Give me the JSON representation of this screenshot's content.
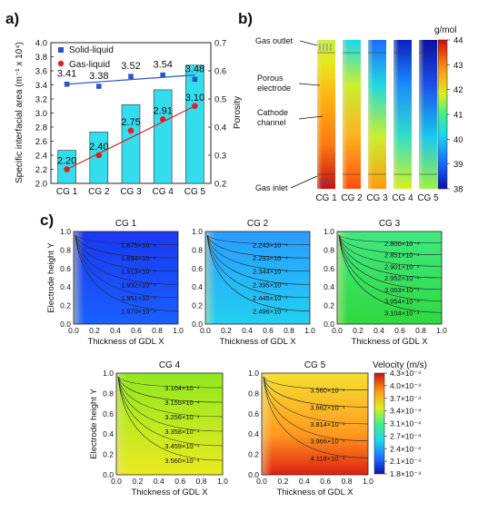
{
  "panel_labels": [
    "a)",
    "b)",
    "c)"
  ],
  "chart_data": [
    {
      "type": "bar",
      "panel": "a)",
      "categories": [
        "CG 1",
        "CG 2",
        "CG 3",
        "CG 4",
        "CG 5"
      ],
      "values": [
        2.2,
        2.4,
        2.75,
        2.91,
        3.1
      ],
      "bar_labels": [
        "2.20",
        "2.40",
        "2.75",
        "2.91",
        "3.10"
      ],
      "bar_heights": [
        2.47,
        2.73,
        3.12,
        3.33,
        3.68
      ],
      "bar_color": "#33ddee",
      "ylabel": "Specific interfacial area (m⁻¹ x 10⁴)",
      "ylim": [
        2.0,
        4.0
      ],
      "yticks": [
        "2.0",
        "2.2",
        "2.4",
        "2.6",
        "2.8",
        "3.0",
        "3.2",
        "3.4",
        "3.6",
        "3.8",
        "4.0"
      ],
      "y2label": "Porosity",
      "y2lim": [
        0.2,
        0.7
      ],
      "y2ticks": [
        "0.2",
        "0.3",
        "0.4",
        "0.5",
        "0.6",
        "0.7"
      ],
      "series": [
        {
          "name": "Solid-liquid",
          "color": "#2a55cc",
          "marker": "square",
          "values": [
            3.41,
            3.38,
            3.52,
            3.54,
            3.48
          ],
          "labels": [
            "3.41",
            "3.38",
            "3.52",
            "3.54",
            "3.48"
          ]
        },
        {
          "name": "Gas-liquid",
          "color": "#dd2222",
          "marker": "circle",
          "values": [
            2.2,
            2.4,
            2.75,
            2.91,
            3.1
          ],
          "labels": [
            "2.20",
            "2.40",
            "2.75",
            "2.91",
            "3.10"
          ]
        }
      ],
      "legend": "top-left"
    },
    {
      "type": "heatmap",
      "panel": "b)",
      "categories": [
        "CG 1",
        "CG 2",
        "CG 3",
        "CG 4",
        "CG 5"
      ],
      "annotations": [
        "Gas outlet",
        "Porous electrode",
        "Cathode channel",
        "Gas inlet"
      ],
      "colorbar_unit": "g/mol",
      "colorbar_ticks": [
        "44",
        "43",
        "42",
        "41",
        "40",
        "39",
        "38"
      ],
      "colorbar_range": [
        38,
        44
      ]
    },
    {
      "type": "heatmap",
      "panel": "c)",
      "xlabel": "Thickness of GDL  X",
      "ylabel": "Electrode height Y",
      "xticks": [
        "0.0",
        "0.2",
        "0.4",
        "0.6",
        "0.8",
        "1.0"
      ],
      "yticks": [
        "0.0",
        "0.2",
        "0.4",
        "0.6",
        "0.8",
        "1.0"
      ],
      "colorbar_title": "Velocity (m/s)",
      "colorbar_ticks": [
        "4.3×10⁻⁴",
        "4.0×10⁻⁴",
        "3.7×10⁻⁴",
        "3.4×10⁻⁴",
        "3.1×10⁻⁴",
        "2.7×10⁻⁴",
        "2.4×10⁻⁴",
        "2.1×10⁻⁴",
        "1.8×10⁻⁴"
      ],
      "colorbar_range": [
        1.8,
        4.3
      ],
      "maps": [
        {
          "title": "CG 1",
          "color_levels": [
            1.87,
            1.97
          ],
          "contour_labels": [
            "1.875×10⁻⁴",
            "1.894×10⁻⁴",
            "1.913×10⁻⁴",
            "1.932×10⁻⁴",
            "1.951×10⁻⁴",
            "1.970×10⁻⁴"
          ]
        },
        {
          "title": "CG 2",
          "color_levels": [
            2.24,
            2.5
          ],
          "contour_labels": [
            "2.243×10⁻⁴",
            "2.293×10⁻⁴",
            "2.344×10⁻⁴",
            "2.395×10⁻⁴",
            "2.445×10⁻⁴",
            "2.496×10⁻⁴"
          ]
        },
        {
          "title": "CG 3",
          "color_levels": [
            2.8,
            3.1
          ],
          "contour_labels": [
            "2.800×10⁻⁴",
            "2.851×10⁻⁴",
            "2.901×10⁻⁴",
            "2.952×10⁻⁴",
            "3.003×10⁻⁴",
            "3.054×10⁻⁴",
            "3.104×10⁻⁴"
          ]
        },
        {
          "title": "CG 4",
          "color_levels": [
            3.1,
            3.56
          ],
          "contour_labels": [
            "3.104×10⁻⁴",
            "3.155×10⁻⁴",
            "3.256×10⁻⁴",
            "3.358×10⁻⁴",
            "3.459×10⁻⁴",
            "3.560×10⁻⁴"
          ]
        },
        {
          "title": "CG 5",
          "color_levels": [
            3.56,
            4.12
          ],
          "contour_labels": [
            "3.560×10⁻⁴",
            "3.662×10⁻⁴",
            "3.814×10⁻⁴",
            "3.966×10⁻⁴",
            "4.118×10⁻⁴"
          ]
        }
      ]
    }
  ]
}
